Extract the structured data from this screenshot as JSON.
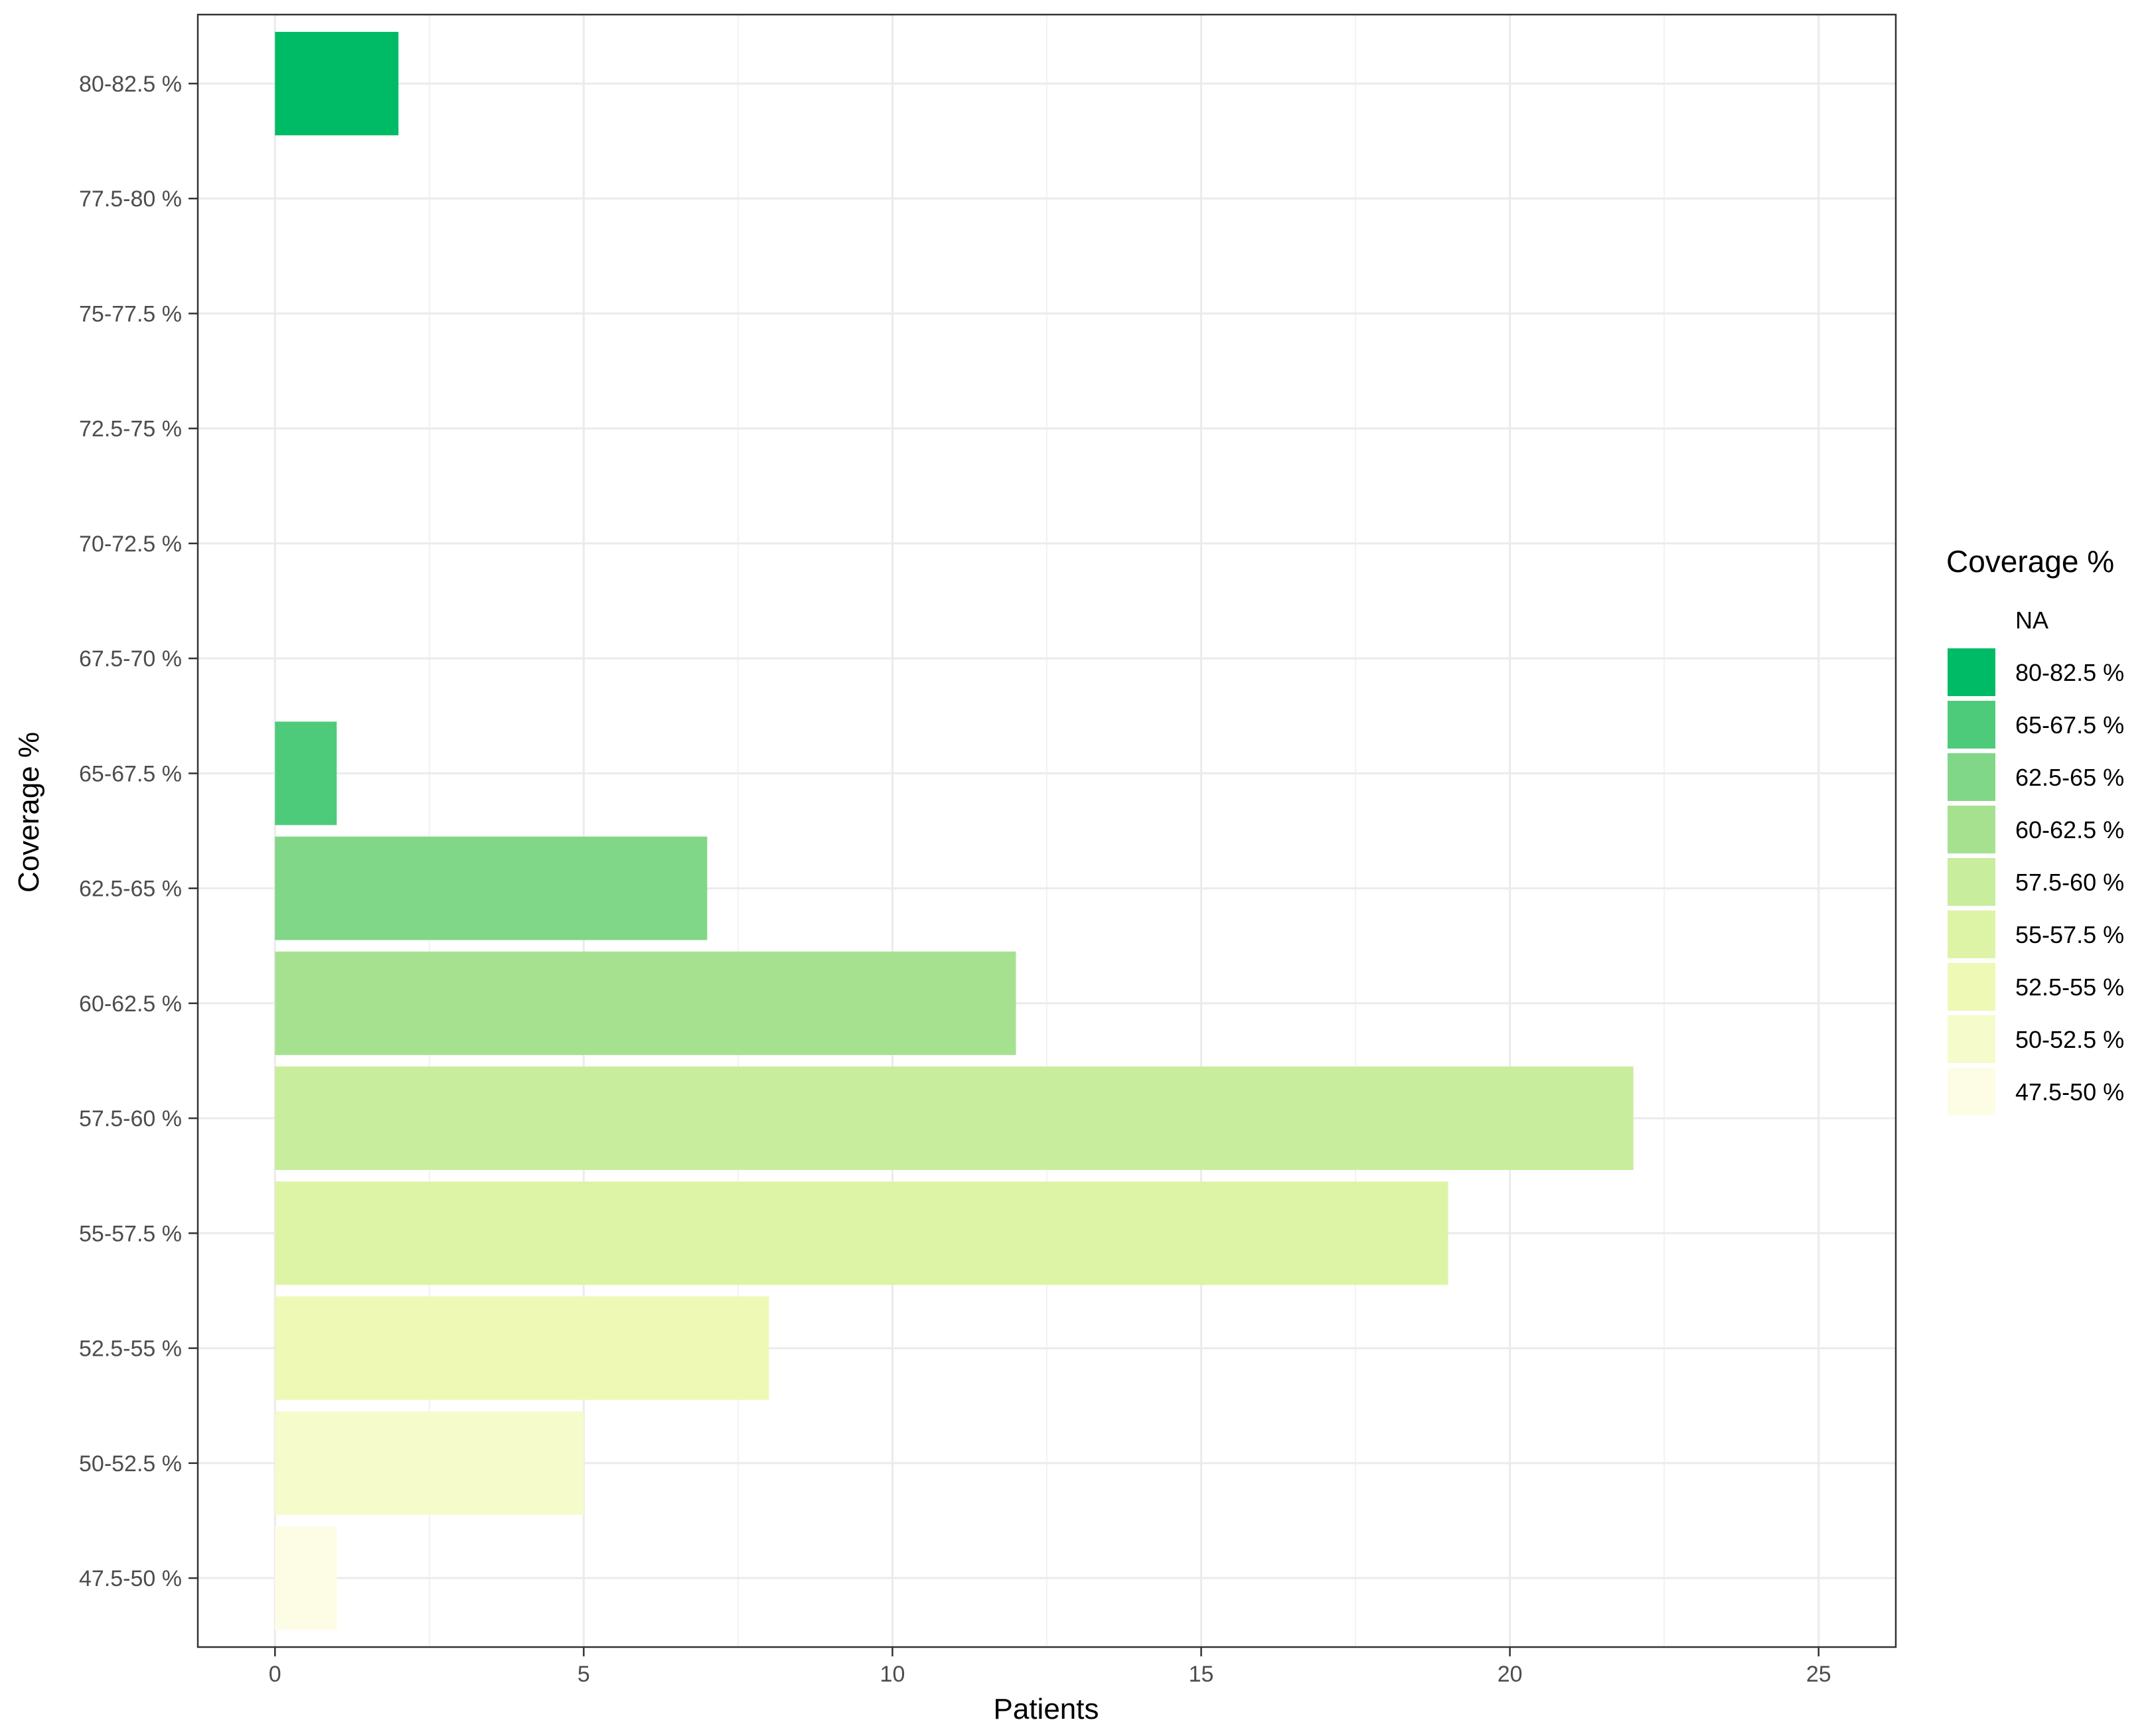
{
  "chart_data": {
    "type": "bar",
    "orientation": "horizontal",
    "title": "",
    "xlabel": "Patients",
    "ylabel": "Coverage %",
    "xlim": [
      -1.25,
      26.25
    ],
    "xticks": [
      "0",
      "5",
      "10",
      "15",
      "20",
      "25"
    ],
    "grid": true,
    "categories": [
      "80-82.5  %",
      "77.5-80 %",
      "75-77.5 %",
      "72.5-75 %",
      "70-72.5 %",
      "67.5-70 %",
      "65-67.5  %",
      "62.5-65  %",
      "60-62.5  %",
      "57.5-60  %",
      "55-57.5  %",
      "52.5-55  %",
      "50-52.5  %",
      "47.5-50  %"
    ],
    "values": [
      2,
      0,
      0,
      0,
      0,
      0,
      1,
      7,
      12,
      22,
      19,
      8,
      5,
      1
    ],
    "colors": [
      "#00bb66",
      null,
      null,
      null,
      null,
      null,
      "#4ecb7a",
      "#80d787",
      "#a6e190",
      "#c8ed9c",
      "#ddf4a6",
      "#eef9b6",
      "#f6fbcc",
      "#fdfde6"
    ],
    "legend": {
      "title": "Coverage %",
      "placement": "right",
      "items": [
        {
          "label": "NA",
          "color": null
        },
        {
          "label": "80-82.5  %",
          "color": "#00bb66"
        },
        {
          "label": "65-67.5  %",
          "color": "#4ecb7a"
        },
        {
          "label": "62.5-65  %",
          "color": "#80d787"
        },
        {
          "label": "60-62.5  %",
          "color": "#a6e190"
        },
        {
          "label": "57.5-60  %",
          "color": "#c8ed9c"
        },
        {
          "label": "55-57.5  %",
          "color": "#ddf4a6"
        },
        {
          "label": "52.5-55  %",
          "color": "#eef9b6"
        },
        {
          "label": "50-52.5  %",
          "color": "#f6fbcc"
        },
        {
          "label": "47.5-50  %",
          "color": "#fdfde6"
        }
      ]
    }
  }
}
